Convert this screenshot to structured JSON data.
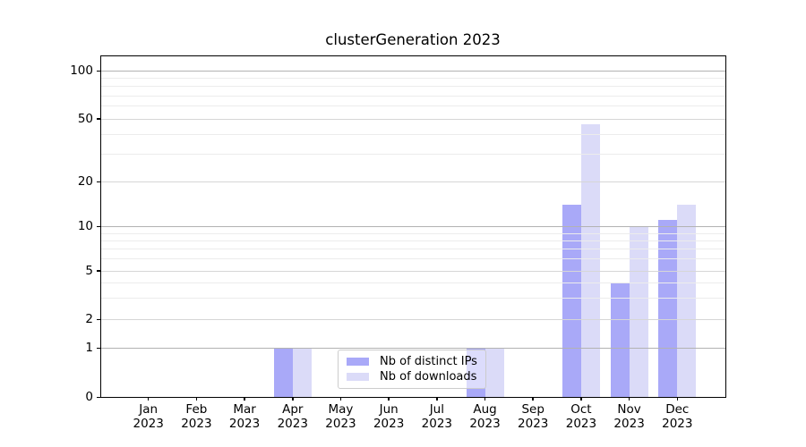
{
  "title": "clusterGeneration 2023",
  "legend": {
    "items": [
      {
        "label": "Nb of distinct IPs"
      },
      {
        "label": "Nb of downloads"
      }
    ]
  },
  "chart_data": {
    "type": "bar",
    "title": "clusterGeneration 2023",
    "categories": [
      "Jan 2023",
      "Feb 2023",
      "Mar 2023",
      "Apr 2023",
      "May 2023",
      "Jun 2023",
      "Jul 2023",
      "Aug 2023",
      "Sep 2023",
      "Oct 2023",
      "Nov 2023",
      "Dec 2023"
    ],
    "series": [
      {
        "name": "Nb of distinct IPs",
        "color": "#a9a9f8",
        "values": [
          0,
          0,
          0,
          1,
          0,
          0,
          0,
          1,
          0,
          14,
          4,
          11
        ]
      },
      {
        "name": "Nb of downloads",
        "color": "#dbdbf8",
        "values": [
          0,
          0,
          0,
          1,
          0,
          0,
          0,
          1,
          0,
          46,
          10,
          14
        ]
      }
    ],
    "xlabel": "",
    "ylabel": "",
    "yscale": "log (compressed linear segment below 5, zero baseline shown)",
    "ytick_labels": [
      "0",
      "1",
      "2",
      "5",
      "10",
      "20",
      "50",
      "100"
    ],
    "ytick_values": [
      0,
      1,
      2,
      5,
      10,
      20,
      50,
      100
    ],
    "minor_tick_values": [
      3,
      4,
      6,
      7,
      8,
      9,
      30,
      40,
      60,
      70,
      80,
      90
    ],
    "ylim": [
      0,
      130
    ],
    "grid": "horizontal, major and minor",
    "legend_position": "lower center",
    "colors": {
      "bar_distinct_ips": "#a9a9f8",
      "bar_downloads": "#dbdbf8",
      "major_grid_pow10": "#b2b2b2",
      "major_grid_mid": "#d6d6d6",
      "minor_grid": "#ececec",
      "spine": "#000000",
      "legend_border": "#cccccc",
      "text": "#000000"
    }
  }
}
